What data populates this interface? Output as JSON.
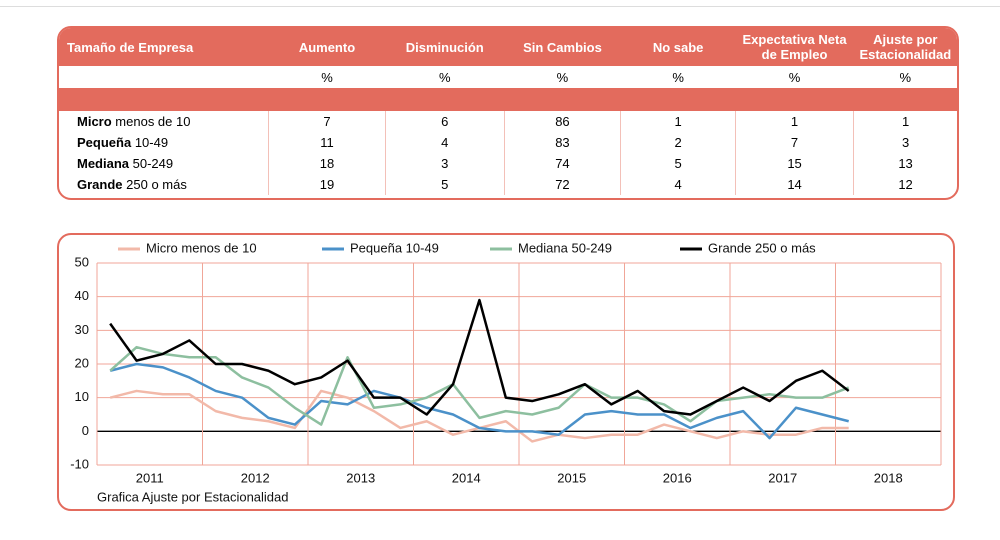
{
  "table": {
    "header": [
      "Tamaño de Empresa",
      "Aumento",
      "Disminución",
      "Sin Cambios",
      "No sabe",
      "Expectativa Neta de Empleo",
      "Ajuste por Estacionalidad"
    ],
    "units": [
      "%",
      "%",
      "%",
      "%",
      "%",
      "%"
    ],
    "rows": [
      {
        "size": "Micro",
        "range": "menos de 10",
        "values": [
          7,
          6,
          86,
          1,
          1,
          1
        ]
      },
      {
        "size": "Pequeña",
        "range": "10-49",
        "values": [
          11,
          4,
          83,
          2,
          7,
          3
        ]
      },
      {
        "size": "Mediana",
        "range": "50-249",
        "values": [
          18,
          3,
          74,
          5,
          15,
          13
        ]
      },
      {
        "size": "Grande",
        "range": "250 o más",
        "values": [
          19,
          5,
          72,
          4,
          14,
          12
        ]
      }
    ]
  },
  "chart_data": {
    "type": "line",
    "caption": "Grafica Ajuste por Estacionalidad",
    "x": [
      2011.125,
      2011.375,
      2011.625,
      2011.875,
      2012.125,
      2012.375,
      2012.625,
      2012.875,
      2013.125,
      2013.375,
      2013.625,
      2013.875,
      2014.125,
      2014.375,
      2014.625,
      2014.875,
      2015.125,
      2015.375,
      2015.625,
      2015.875,
      2016.125,
      2016.375,
      2016.625,
      2016.875,
      2017.125,
      2017.375,
      2017.625,
      2017.875,
      2018.125
    ],
    "xlim": [
      2011,
      2019
    ],
    "xticks": [
      2011,
      2012,
      2013,
      2014,
      2015,
      2016,
      2017,
      2018
    ],
    "ylim": [
      -10,
      50
    ],
    "yticks": [
      -10,
      0,
      10,
      20,
      30,
      40,
      50
    ],
    "grid": true,
    "series": [
      {
        "name": "Micro menos de 10",
        "color": "#f2b9a9",
        "values": [
          10,
          12,
          11,
          11,
          6,
          4,
          3,
          1,
          12,
          10,
          6,
          1,
          3,
          -1,
          1,
          3,
          -3,
          -1,
          -2,
          -1,
          -1,
          2,
          0,
          -2,
          0,
          -1,
          -1,
          1,
          1
        ]
      },
      {
        "name": "Pequeña 10-49",
        "color": "#4b91c9",
        "values": [
          18,
          20,
          19,
          16,
          12,
          10,
          4,
          2,
          9,
          8,
          12,
          10,
          7,
          5,
          1,
          0,
          0,
          -1,
          5,
          6,
          5,
          5,
          1,
          4,
          6,
          -2,
          7,
          5,
          3
        ]
      },
      {
        "name": "Mediana 50-249",
        "color": "#8dbf9f",
        "values": [
          18,
          25,
          23,
          22,
          22,
          16,
          13,
          7,
          2,
          22,
          7,
          8,
          10,
          14,
          4,
          6,
          5,
          7,
          14,
          10,
          10,
          8,
          3,
          9,
          10,
          11,
          10,
          10,
          13
        ]
      },
      {
        "name": "Grande 250 o más",
        "color": "#000000",
        "values": [
          32,
          21,
          23,
          27,
          20,
          20,
          18,
          14,
          16,
          21,
          10,
          10,
          5,
          14,
          39,
          10,
          9,
          11,
          14,
          8,
          12,
          6,
          5,
          9,
          13,
          9,
          15,
          18,
          12
        ]
      }
    ]
  }
}
